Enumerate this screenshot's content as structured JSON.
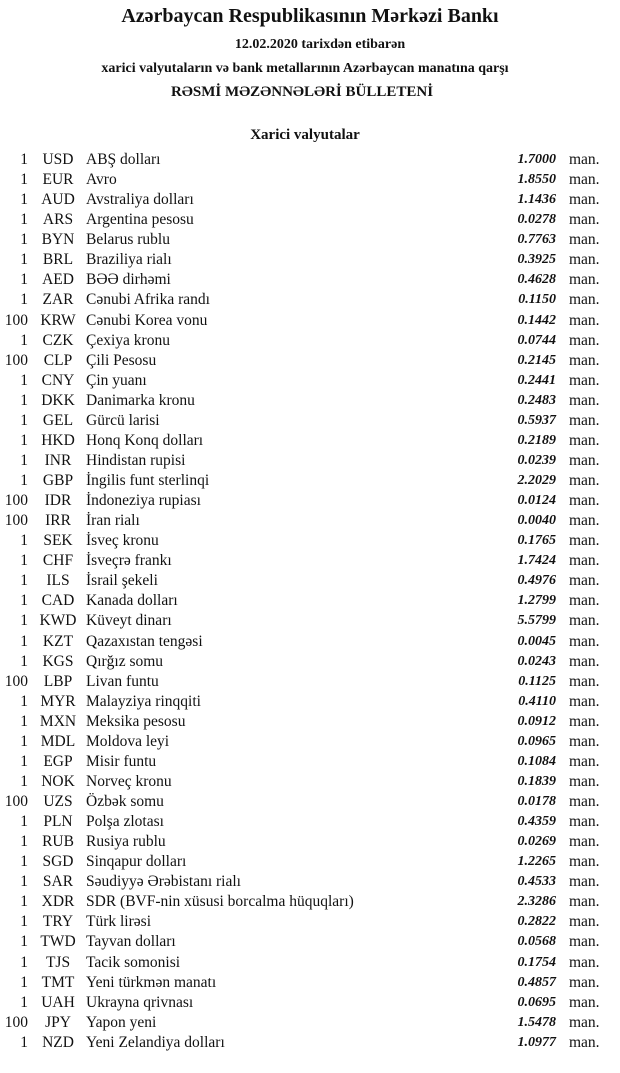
{
  "header": {
    "title": "Azərbaycan Respublikasının Mərkəzi Bankı",
    "date_line": "12.02.2020 tarixdən etibarən",
    "subtitle": "xarici valyutaların və bank metallarının Azərbaycan manatına qarşı",
    "bulletin": "RƏSMİ MƏZƏNNƏLƏRİ BÜLLETENİ"
  },
  "section_title": "Xarici valyutalar",
  "unit_label": "man.",
  "rates": [
    {
      "nominal": "1",
      "code": "USD",
      "name": "ABŞ dolları",
      "rate": "1.7000"
    },
    {
      "nominal": "1",
      "code": "EUR",
      "name": "Avro",
      "rate": "1.8550"
    },
    {
      "nominal": "1",
      "code": "AUD",
      "name": "Avstraliya dolları",
      "rate": "1.1436"
    },
    {
      "nominal": "1",
      "code": "ARS",
      "name": "Argentina pesosu",
      "rate": "0.0278"
    },
    {
      "nominal": "1",
      "code": "BYN",
      "name": "Belarus rublu",
      "rate": "0.7763"
    },
    {
      "nominal": "1",
      "code": "BRL",
      "name": "Braziliya rialı",
      "rate": "0.3925"
    },
    {
      "nominal": "1",
      "code": "AED",
      "name": "BƏƏ dirhəmi",
      "rate": "0.4628"
    },
    {
      "nominal": "1",
      "code": "ZAR",
      "name": "Cənubi Afrika randı",
      "rate": "0.1150"
    },
    {
      "nominal": "100",
      "code": "KRW",
      "name": "Cənubi Korea vonu",
      "rate": "0.1442"
    },
    {
      "nominal": "1",
      "code": "CZK",
      "name": "Çexiya kronu",
      "rate": "0.0744"
    },
    {
      "nominal": "100",
      "code": "CLP",
      "name": "Çili Pesosu",
      "rate": "0.2145"
    },
    {
      "nominal": "1",
      "code": "CNY",
      "name": "Çin yuanı",
      "rate": "0.2441"
    },
    {
      "nominal": "1",
      "code": "DKK",
      "name": "Danimarka kronu",
      "rate": "0.2483"
    },
    {
      "nominal": "1",
      "code": "GEL",
      "name": "Gürcü larisi",
      "rate": "0.5937"
    },
    {
      "nominal": "1",
      "code": "HKD",
      "name": "Honq Konq dolları",
      "rate": "0.2189"
    },
    {
      "nominal": "1",
      "code": "INR",
      "name": "Hindistan rupisi",
      "rate": "0.0239"
    },
    {
      "nominal": "1",
      "code": "GBP",
      "name": "İngilis funt sterlinqi",
      "rate": "2.2029"
    },
    {
      "nominal": "100",
      "code": "IDR",
      "name": "İndoneziya rupiası",
      "rate": "0.0124"
    },
    {
      "nominal": "100",
      "code": "IRR",
      "name": "İran rialı",
      "rate": "0.0040"
    },
    {
      "nominal": "1",
      "code": "SEK",
      "name": "İsveç kronu",
      "rate": "0.1765"
    },
    {
      "nominal": "1",
      "code": "CHF",
      "name": "İsveçrə frankı",
      "rate": "1.7424"
    },
    {
      "nominal": "1",
      "code": "ILS",
      "name": "İsrail şekeli",
      "rate": "0.4976"
    },
    {
      "nominal": "1",
      "code": "CAD",
      "name": "Kanada dolları",
      "rate": "1.2799"
    },
    {
      "nominal": "1",
      "code": "KWD",
      "name": "Küveyt dinarı",
      "rate": "5.5799"
    },
    {
      "nominal": "1",
      "code": "KZT",
      "name": "Qazaxıstan tengəsi",
      "rate": "0.0045"
    },
    {
      "nominal": "1",
      "code": "KGS",
      "name": "Qırğız somu",
      "rate": "0.0243"
    },
    {
      "nominal": "100",
      "code": "LBP",
      "name": "Livan funtu",
      "rate": "0.1125"
    },
    {
      "nominal": "1",
      "code": "MYR",
      "name": "Malayziya rinqqiti",
      "rate": "0.4110"
    },
    {
      "nominal": "1",
      "code": "MXN",
      "name": "Meksika pesosu",
      "rate": "0.0912"
    },
    {
      "nominal": "1",
      "code": "MDL",
      "name": "Moldova leyi",
      "rate": "0.0965"
    },
    {
      "nominal": "1",
      "code": "EGP",
      "name": "Misir funtu",
      "rate": "0.1084"
    },
    {
      "nominal": "1",
      "code": "NOK",
      "name": "Norveç kronu",
      "rate": "0.1839"
    },
    {
      "nominal": "100",
      "code": "UZS",
      "name": "Özbək somu",
      "rate": "0.0178"
    },
    {
      "nominal": "1",
      "code": "PLN",
      "name": "Polşa zlotası",
      "rate": "0.4359"
    },
    {
      "nominal": "1",
      "code": "RUB",
      "name": "Rusiya rublu",
      "rate": "0.0269"
    },
    {
      "nominal": "1",
      "code": "SGD",
      "name": "Sinqapur dolları",
      "rate": "1.2265"
    },
    {
      "nominal": "1",
      "code": "SAR",
      "name": "Səudiyyə Ərəbistanı rialı",
      "rate": "0.4533"
    },
    {
      "nominal": "1",
      "code": "XDR",
      "name": "SDR (BVF-nin xüsusi borcalma hüquqları)",
      "rate": "2.3286"
    },
    {
      "nominal": "1",
      "code": "TRY",
      "name": "Türk lirəsi",
      "rate": "0.2822"
    },
    {
      "nominal": "1",
      "code": "TWD",
      "name": "Tayvan dolları",
      "rate": "0.0568"
    },
    {
      "nominal": "1",
      "code": "TJS",
      "name": "Tacik somonisi",
      "rate": "0.1754"
    },
    {
      "nominal": "1",
      "code": "TMT",
      "name": "Yeni türkmən manatı",
      "rate": "0.4857"
    },
    {
      "nominal": "1",
      "code": "UAH",
      "name": "Ukrayna qrivnası",
      "rate": "0.0695"
    },
    {
      "nominal": "100",
      "code": "JPY",
      "name": "Yapon yeni",
      "rate": "1.5478"
    },
    {
      "nominal": "1",
      "code": "NZD",
      "name": "Yeni Zelandiya dolları",
      "rate": "1.0977"
    }
  ]
}
